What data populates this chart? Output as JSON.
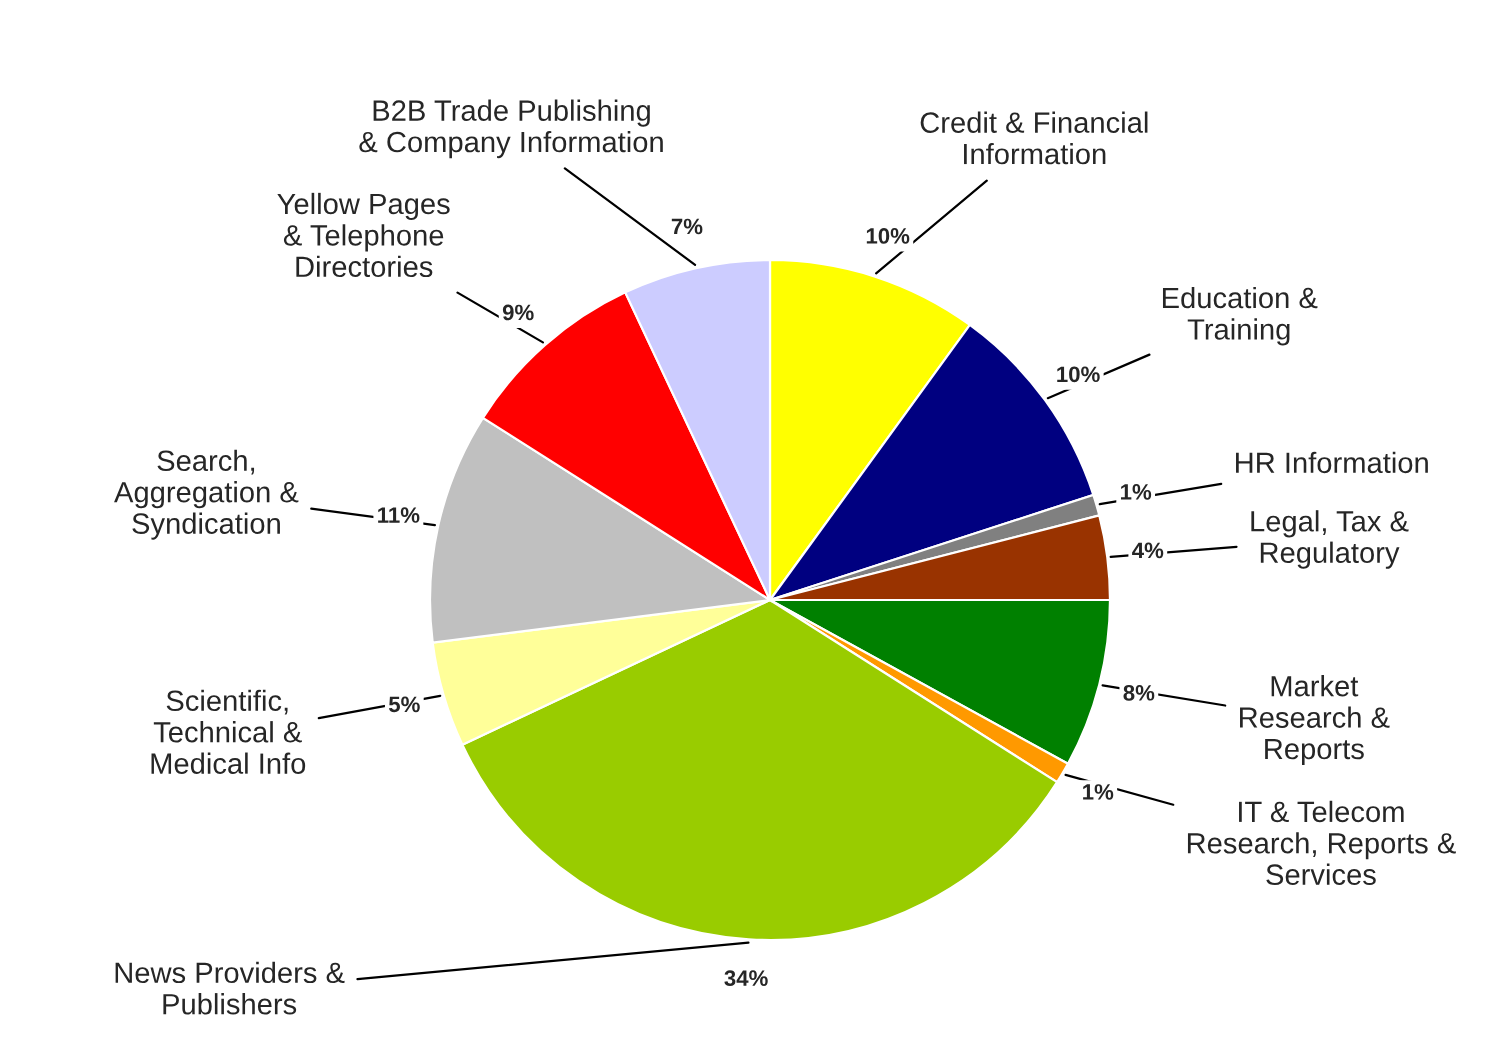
{
  "chart_data": {
    "type": "pie",
    "categories": [
      "Credit & Financial\nInformation",
      "Education &\nTraining",
      "HR Information",
      "Legal, Tax &\nRegulatory",
      "Market\nResearch &\nReports",
      "IT & Telecom\nResearch, Reports &\nServices",
      "News Providers &\nPublishers",
      "Scientific,\nTechnical &\nMedical Info",
      "Search,\nAggregation &\nSyndication",
      "Yellow Pages\n& Telephone\nDirectories",
      "B2B Trade Publishing\n& Company Information"
    ],
    "values": [
      10,
      10,
      1,
      4,
      8,
      1,
      34,
      5,
      11,
      9,
      7
    ],
    "colors": [
      "#ffff00",
      "#000080",
      "#808080",
      "#993300",
      "#008000",
      "#ff9900",
      "#99cc00",
      "#ffff99",
      "#c0c0c0",
      "#ff0000",
      "#ccccff"
    ],
    "value_labels": [
      "10%",
      "10%",
      "1%",
      "4%",
      "8%",
      "1%",
      "34%",
      "5%",
      "11%",
      "9%",
      "7%"
    ]
  }
}
